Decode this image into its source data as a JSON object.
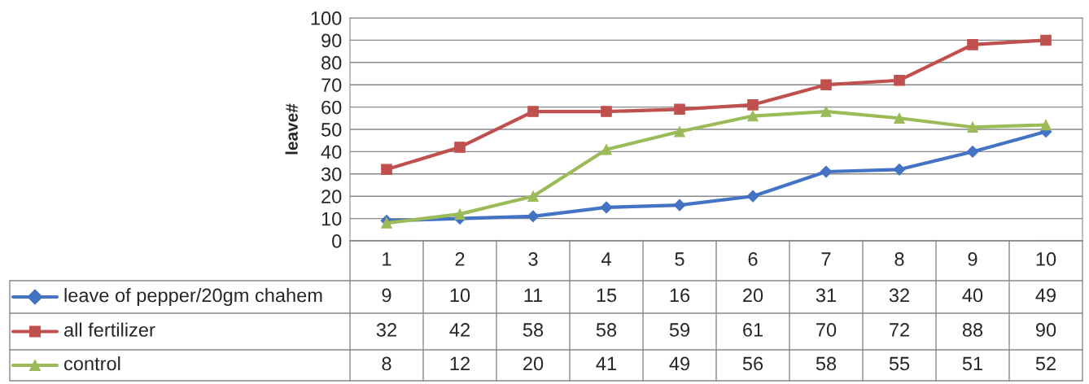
{
  "chart_data": {
    "type": "line",
    "ylabel": "leave#",
    "categories": [
      "1",
      "2",
      "3",
      "4",
      "5",
      "6",
      "7",
      "8",
      "9",
      "10"
    ],
    "series": [
      {
        "name": "leave of pepper/20gm chahem",
        "color": "#4472c4",
        "marker": "diamond",
        "values": [
          9,
          10,
          11,
          15,
          16,
          20,
          31,
          32,
          40,
          49
        ]
      },
      {
        "name": "all fertilizer",
        "color": "#c0504d",
        "marker": "square",
        "values": [
          32,
          42,
          58,
          58,
          59,
          61,
          70,
          72,
          88,
          90
        ]
      },
      {
        "name": "control",
        "color": "#9bbb59",
        "marker": "triangle",
        "values": [
          8,
          12,
          20,
          41,
          49,
          56,
          58,
          55,
          51,
          52
        ]
      }
    ],
    "ylim": [
      0,
      100
    ],
    "yticks": [
      0,
      10,
      20,
      30,
      40,
      50,
      60,
      70,
      80,
      90,
      100
    ],
    "grid": "y",
    "legend": "bottom",
    "data_labels": true,
    "line_style": "solid"
  }
}
